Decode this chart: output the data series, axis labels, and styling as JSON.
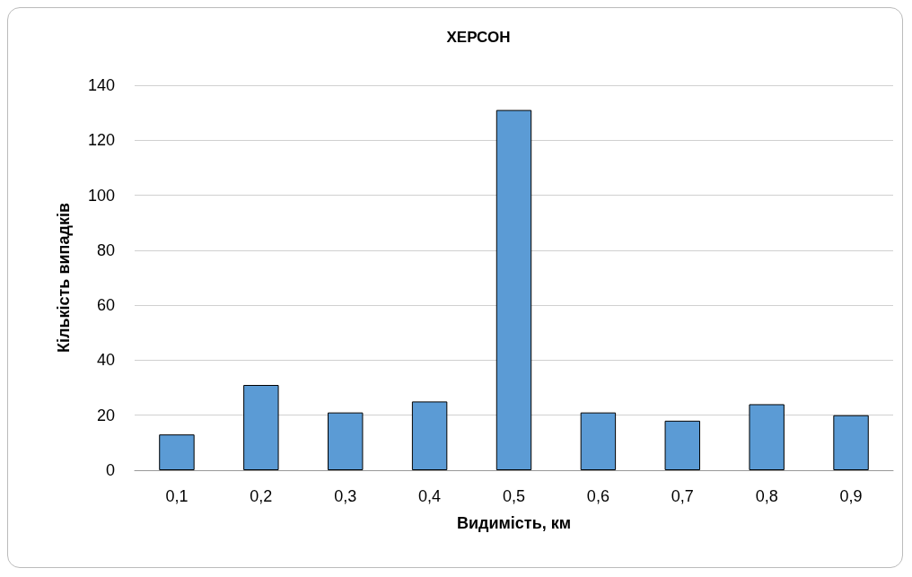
{
  "chart_data": {
    "type": "bar",
    "title": "ХЕРСОН",
    "xlabel": "Видимість, км",
    "ylabel": "Кількість випадків",
    "categories": [
      "0,1",
      "0,2",
      "0,3",
      "0,4",
      "0,5",
      "0,6",
      "0,7",
      "0,8",
      "0,9"
    ],
    "values": [
      13,
      31,
      21,
      25,
      131,
      21,
      18,
      24,
      20
    ],
    "color": "#5b9bd5",
    "ylim": [
      0,
      140
    ],
    "yticks": [
      0,
      20,
      40,
      60,
      80,
      100,
      120,
      140
    ],
    "grid": "y"
  }
}
